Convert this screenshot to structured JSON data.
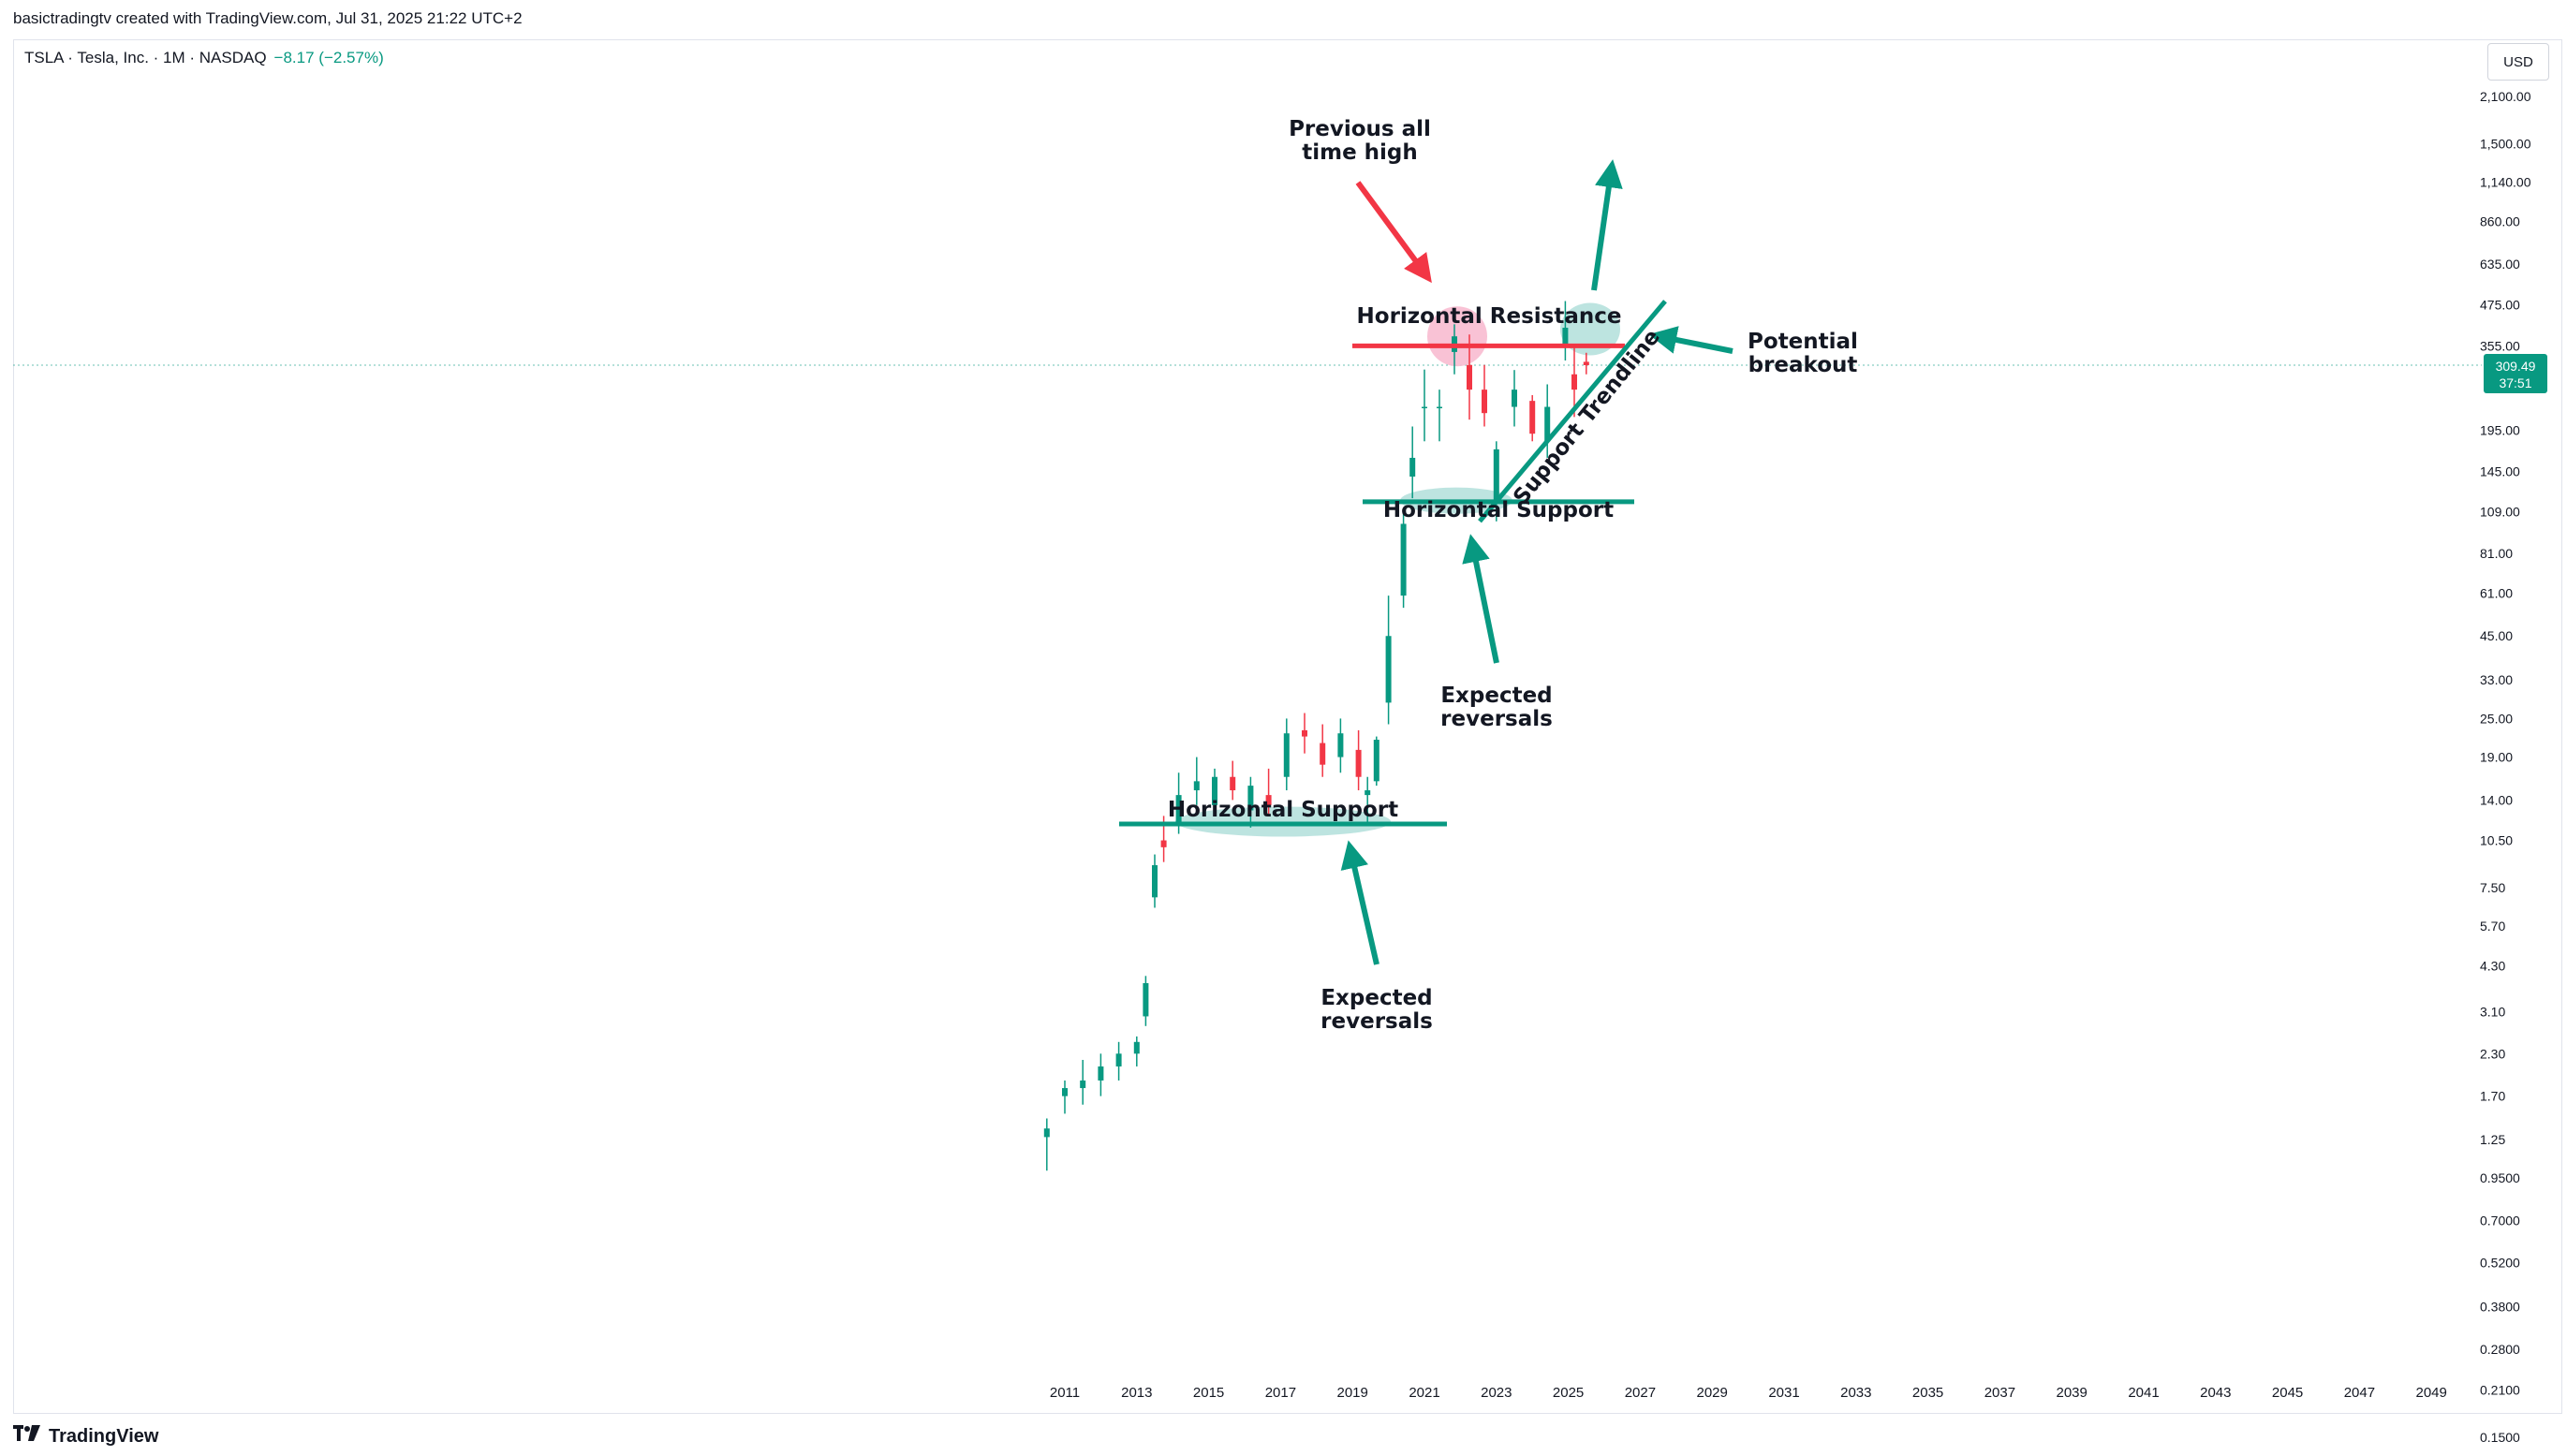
{
  "attribution": "basictradingtv created with TradingView.com, Jul 31, 2025 21:22 UTC+2",
  "symbol": {
    "label": "TSLA · Tesla, Inc. · 1M · NASDAQ",
    "change": "−8.17 (−2.57%)"
  },
  "currency": "USD",
  "logo_text": "TradingView",
  "price_badge": {
    "price": "309.49",
    "countdown": "37:51"
  },
  "colors": {
    "up": "#089981",
    "down": "#f23645",
    "support": "#089981",
    "resistance": "#f23645",
    "support_zone": "#b2dfdb",
    "resistance_zone": "#f8bbd0"
  },
  "chart_data": {
    "type": "candlestick",
    "scale": "log",
    "y_ticks": [
      "2,100.00",
      "1,500.00",
      "1,140.00",
      "860.00",
      "635.00",
      "475.00",
      "355.00",
      "195.00",
      "145.00",
      "109.00",
      "81.00",
      "61.00",
      "45.00",
      "33.00",
      "25.00",
      "19.00",
      "14.00",
      "10.50",
      "7.50",
      "5.70",
      "4.30",
      "3.10",
      "2.30",
      "1.70",
      "1.25",
      "0.9500",
      "0.7000",
      "0.5200",
      "0.3800",
      "0.2800",
      "0.2100",
      "0.1500"
    ],
    "x_ticks": [
      "2011",
      "2013",
      "2015",
      "2017",
      "2019",
      "2021",
      "2023",
      "2025",
      "2027",
      "2029",
      "2031",
      "2033",
      "2035",
      "2037",
      "2039",
      "2041",
      "2043",
      "2045",
      "2047",
      "2049"
    ],
    "last_price": 309.49,
    "candles_approx": [
      {
        "t": "2010-07",
        "o": 1.27,
        "h": 1.45,
        "l": 1.0,
        "c": 1.35
      },
      {
        "t": "2011-01",
        "o": 1.7,
        "h": 1.9,
        "l": 1.5,
        "c": 1.8
      },
      {
        "t": "2011-07",
        "o": 1.8,
        "h": 2.2,
        "l": 1.6,
        "c": 1.9
      },
      {
        "t": "2012-01",
        "o": 1.9,
        "h": 2.3,
        "l": 1.7,
        "c": 2.1
      },
      {
        "t": "2012-07",
        "o": 2.1,
        "h": 2.5,
        "l": 1.9,
        "c": 2.3
      },
      {
        "t": "2013-01",
        "o": 2.3,
        "h": 2.6,
        "l": 2.1,
        "c": 2.5
      },
      {
        "t": "2013-04",
        "o": 3.0,
        "h": 4.0,
        "l": 2.8,
        "c": 3.8
      },
      {
        "t": "2013-07",
        "o": 7.0,
        "h": 9.5,
        "l": 6.5,
        "c": 8.8
      },
      {
        "t": "2013-10",
        "o": 10.5,
        "h": 12.5,
        "l": 9.0,
        "c": 10.0
      },
      {
        "t": "2014-03",
        "o": 12.0,
        "h": 17.0,
        "l": 11.0,
        "c": 14.5
      },
      {
        "t": "2014-09",
        "o": 15.0,
        "h": 19.0,
        "l": 13.5,
        "c": 16.0
      },
      {
        "t": "2015-03",
        "o": 13.5,
        "h": 17.5,
        "l": 12.5,
        "c": 16.5
      },
      {
        "t": "2015-09",
        "o": 16.5,
        "h": 18.5,
        "l": 14.0,
        "c": 15.0
      },
      {
        "t": "2016-03",
        "o": 13.0,
        "h": 16.5,
        "l": 11.5,
        "c": 15.5
      },
      {
        "t": "2016-09",
        "o": 14.5,
        "h": 17.5,
        "l": 12.5,
        "c": 13.5
      },
      {
        "t": "2017-03",
        "o": 16.5,
        "h": 25.0,
        "l": 15.0,
        "c": 22.5
      },
      {
        "t": "2017-09",
        "o": 23.0,
        "h": 26.0,
        "l": 19.5,
        "c": 22.0
      },
      {
        "t": "2018-03",
        "o": 21.0,
        "h": 24.0,
        "l": 16.5,
        "c": 18.0
      },
      {
        "t": "2018-09",
        "o": 19.0,
        "h": 25.0,
        "l": 17.0,
        "c": 22.5
      },
      {
        "t": "2019-03",
        "o": 20.0,
        "h": 23.0,
        "l": 15.0,
        "c": 16.5
      },
      {
        "t": "2019-06",
        "o": 14.5,
        "h": 16.5,
        "l": 11.8,
        "c": 15.0
      },
      {
        "t": "2019-09",
        "o": 16.0,
        "h": 22.0,
        "l": 15.5,
        "c": 21.5
      },
      {
        "t": "2020-01",
        "o": 28.0,
        "h": 60.0,
        "l": 24.0,
        "c": 45.0
      },
      {
        "t": "2020-06",
        "o": 60.0,
        "h": 110.0,
        "l": 55.0,
        "c": 100.0
      },
      {
        "t": "2020-09",
        "o": 140.0,
        "h": 200.0,
        "l": 120.0,
        "c": 160.0
      },
      {
        "t": "2021-01",
        "o": 230.0,
        "h": 300.0,
        "l": 180.0,
        "c": 230.0
      },
      {
        "t": "2021-06",
        "o": 230.0,
        "h": 260.0,
        "l": 180.0,
        "c": 230.0
      },
      {
        "t": "2021-11",
        "o": 340.0,
        "h": 414.0,
        "l": 290.0,
        "c": 380.0
      },
      {
        "t": "2022-04",
        "o": 310.0,
        "h": 385.0,
        "l": 210.0,
        "c": 260.0
      },
      {
        "t": "2022-09",
        "o": 260.0,
        "h": 310.0,
        "l": 200.0,
        "c": 220.0
      },
      {
        "t": "2023-01",
        "o": 118.0,
        "h": 180.0,
        "l": 101.8,
        "c": 170.0
      },
      {
        "t": "2023-07",
        "o": 230.0,
        "h": 299.0,
        "l": 200.0,
        "c": 260.0
      },
      {
        "t": "2024-01",
        "o": 240.0,
        "h": 250.0,
        "l": 180.0,
        "c": 190.0
      },
      {
        "t": "2024-06",
        "o": 180.0,
        "h": 270.0,
        "l": 160.0,
        "c": 230.0
      },
      {
        "t": "2024-12",
        "o": 360.0,
        "h": 488.5,
        "l": 320.0,
        "c": 404.0
      },
      {
        "t": "2025-03",
        "o": 290.0,
        "h": 350.0,
        "l": 214.0,
        "c": 260.0
      },
      {
        "t": "2025-07",
        "o": 317.0,
        "h": 338.0,
        "l": 290.0,
        "c": 309.49
      }
    ],
    "annotations": [
      {
        "text": [
          "Previous all",
          "time high"
        ]
      },
      {
        "text": [
          "Horizontal Resistance"
        ]
      },
      {
        "text": [
          "Potential",
          "breakout"
        ]
      },
      {
        "text": [
          "Support Trendline"
        ]
      },
      {
        "text": [
          "Horizontal Support"
        ]
      },
      {
        "text": [
          "Horizontal Support"
        ]
      },
      {
        "text": [
          "Expected",
          "reversals"
        ]
      },
      {
        "text": [
          "Expected",
          "reversals"
        ]
      }
    ]
  }
}
